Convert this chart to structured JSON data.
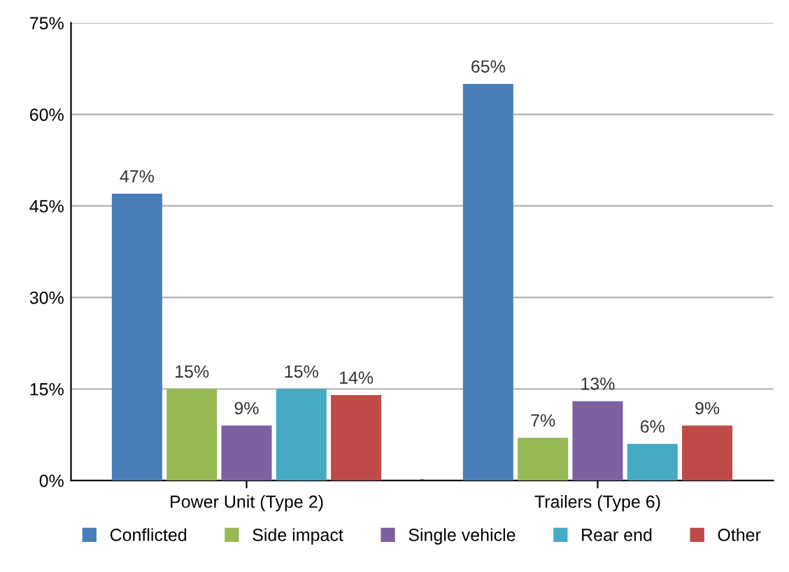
{
  "chart_data": {
    "type": "bar",
    "categories": [
      "Power Unit (Type 2)",
      "Trailers (Type 6)"
    ],
    "series": [
      {
        "name": "Conflicted",
        "color": "#4a7ebb",
        "values": [
          47,
          65
        ],
        "value_labels": [
          "47%",
          "65%"
        ]
      },
      {
        "name": "Side impact",
        "color": "#98b954",
        "values": [
          15,
          7
        ],
        "value_labels": [
          "15%",
          "7%"
        ]
      },
      {
        "name": "Single vehicle",
        "color": "#7d60a0",
        "values": [
          9,
          13
        ],
        "value_labels": [
          "9%",
          "13%"
        ]
      },
      {
        "name": "Rear end",
        "color": "#46aac5",
        "values": [
          15,
          6
        ],
        "value_labels": [
          "15%",
          "6%"
        ]
      },
      {
        "name": "Other",
        "color": "#be4b48",
        "values": [
          14,
          9
        ],
        "value_labels": [
          "14%",
          "9%"
        ]
      }
    ],
    "ylim": [
      0,
      75
    ],
    "yticks": [
      {
        "value": 0,
        "label": "0%"
      },
      {
        "value": 15,
        "label": "15%"
      },
      {
        "value": 30,
        "label": "30%"
      },
      {
        "value": 45,
        "label": "45%"
      },
      {
        "value": 60,
        "label": "60%"
      },
      {
        "value": 75,
        "label": "75%"
      }
    ],
    "grid": "y",
    "legend": "bottom"
  }
}
